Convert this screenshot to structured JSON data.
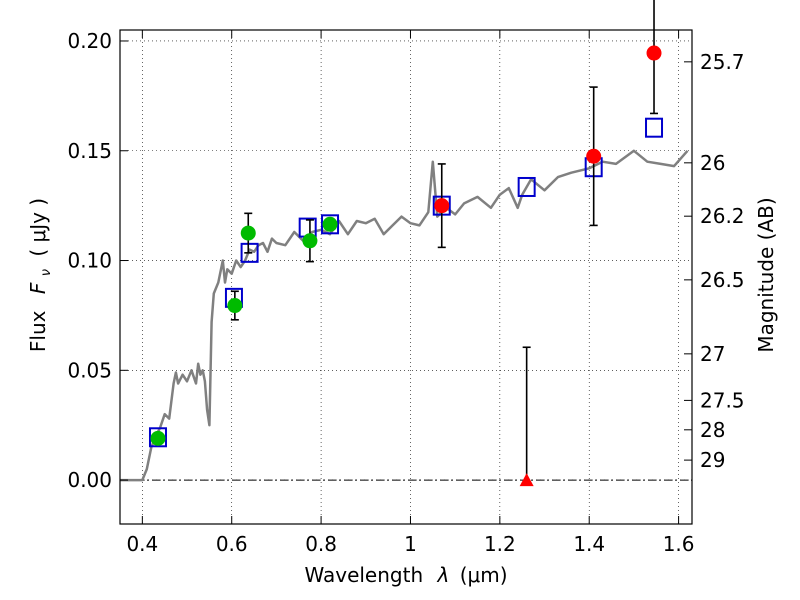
{
  "chart_data": {
    "type": "scatter",
    "xlabel_text": "Wavelength",
    "xlabel_symbol": "λ",
    "xlabel_unit": "(μm)",
    "ylabel_text": "Flux",
    "ylabel_symbol": "F",
    "ylabel_subscript": "ν",
    "ylabel_unit": "( μJy )",
    "y2label": "Magnitude (AB)",
    "xlim": [
      0.35,
      1.63
    ],
    "ylim": [
      -0.02,
      0.205
    ],
    "grid": true,
    "x_ticks": [
      0.4,
      0.6,
      0.8,
      1.0,
      1.2,
      1.4,
      1.6
    ],
    "x_tick_labels": [
      "0.4",
      "0.6",
      "0.8",
      "1",
      "1.2",
      "1.4",
      "1.6"
    ],
    "y_ticks": [
      0.0,
      0.05,
      0.1,
      0.15,
      0.2
    ],
    "y_tick_labels": [
      "0.00",
      "0.05",
      "0.10",
      "0.15",
      "0.20"
    ],
    "mag_ticks": [
      {
        "label": "25.7",
        "flux": 0.1905
      },
      {
        "label": "26",
        "flux": 0.1445
      },
      {
        "label": "26.2",
        "flux": 0.1202
      },
      {
        "label": "26.5",
        "flux": 0.0912
      },
      {
        "label": "27",
        "flux": 0.0575
      },
      {
        "label": "27.5",
        "flux": 0.0363
      },
      {
        "label": "28",
        "flux": 0.0229
      },
      {
        "label": "29",
        "flux": 0.0091
      }
    ],
    "series": [
      {
        "kind": "line",
        "color": "#808080",
        "x": [
          0.35,
          0.4,
          0.41,
          0.42,
          0.43,
          0.44,
          0.45,
          0.46,
          0.47,
          0.475,
          0.48,
          0.49,
          0.5,
          0.51,
          0.52,
          0.525,
          0.53,
          0.535,
          0.54,
          0.545,
          0.55,
          0.555,
          0.56,
          0.57,
          0.58,
          0.585,
          0.59,
          0.6,
          0.61,
          0.62,
          0.63,
          0.64,
          0.65,
          0.66,
          0.67,
          0.68,
          0.69,
          0.7,
          0.72,
          0.74,
          0.76,
          0.78,
          0.8,
          0.82,
          0.84,
          0.86,
          0.88,
          0.9,
          0.92,
          0.94,
          0.96,
          0.98,
          1.0,
          1.02,
          1.04,
          1.05,
          1.06,
          1.08,
          1.1,
          1.12,
          1.15,
          1.18,
          1.2,
          1.22,
          1.24,
          1.25,
          1.27,
          1.3,
          1.33,
          1.36,
          1.4,
          1.43,
          1.46,
          1.5,
          1.53,
          1.56,
          1.59,
          1.62
        ],
        "y": [
          0.0,
          0.0,
          0.005,
          0.015,
          0.02,
          0.024,
          0.03,
          0.028,
          0.044,
          0.049,
          0.044,
          0.048,
          0.045,
          0.05,
          0.044,
          0.053,
          0.048,
          0.05,
          0.045,
          0.032,
          0.025,
          0.072,
          0.085,
          0.09,
          0.1,
          0.09,
          0.096,
          0.094,
          0.1,
          0.097,
          0.1,
          0.105,
          0.104,
          0.107,
          0.108,
          0.104,
          0.11,
          0.108,
          0.107,
          0.113,
          0.109,
          0.113,
          0.114,
          0.112,
          0.118,
          0.112,
          0.118,
          0.117,
          0.119,
          0.112,
          0.116,
          0.12,
          0.117,
          0.116,
          0.122,
          0.145,
          0.12,
          0.124,
          0.121,
          0.126,
          0.129,
          0.124,
          0.13,
          0.133,
          0.124,
          0.13,
          0.137,
          0.132,
          0.138,
          0.14,
          0.142,
          0.145,
          0.144,
          0.15,
          0.145,
          0.144,
          0.143,
          0.15
        ]
      },
      {
        "kind": "squares",
        "color": "#0000cc",
        "x": [
          0.435,
          0.605,
          0.64,
          0.77,
          0.82,
          1.07,
          1.26,
          1.41,
          1.545
        ],
        "y": [
          0.0195,
          0.083,
          0.1035,
          0.115,
          0.1165,
          0.125,
          0.1335,
          0.1425,
          0.1605
        ]
      },
      {
        "kind": "dots",
        "color": "#00bb00",
        "x": [
          0.435,
          0.607,
          0.637,
          0.775,
          0.82
        ],
        "y": [
          0.019,
          0.0795,
          0.1125,
          0.109,
          0.1165
        ],
        "err": [
          0.0,
          0.0065,
          0.009,
          0.0095,
          0.0
        ]
      },
      {
        "kind": "dots",
        "color": "#ff0000",
        "x": [
          1.07,
          1.41,
          1.545
        ],
        "y": [
          0.125,
          0.1475,
          0.1945
        ],
        "err": [
          0.019,
          0.0315,
          0.0275
        ]
      },
      {
        "kind": "triangle",
        "color": "#ff0000",
        "x": [
          1.26
        ],
        "y": [
          0.0
        ],
        "err_up": [
          0.0605
        ]
      }
    ]
  }
}
